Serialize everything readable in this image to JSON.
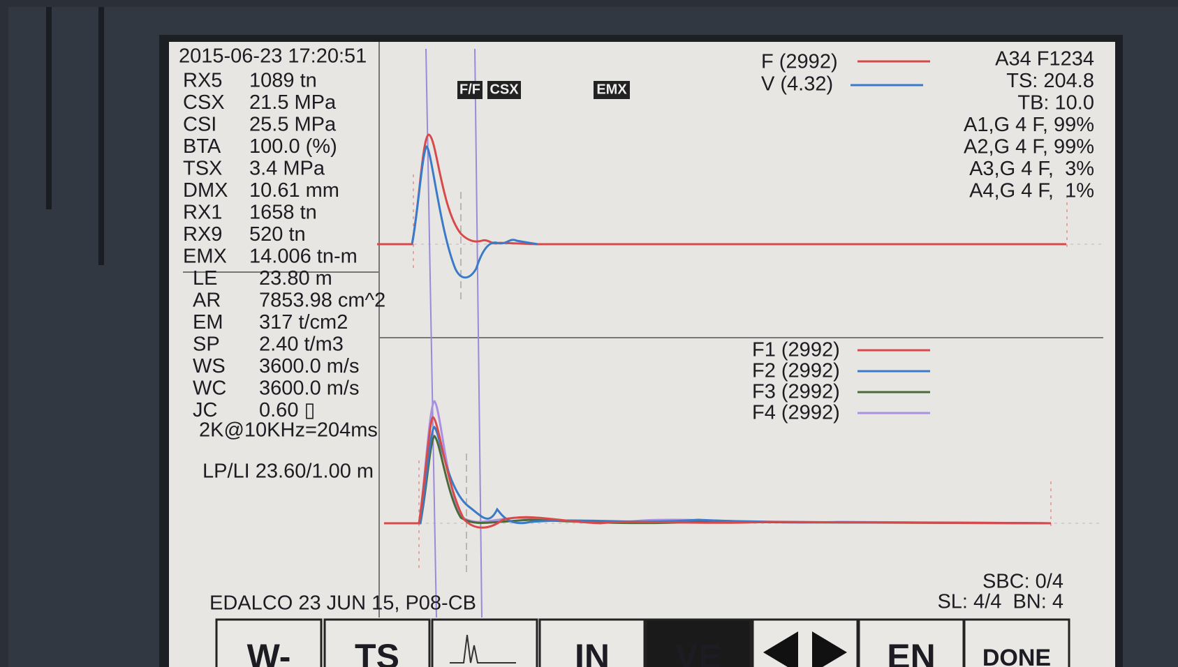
{
  "header": {
    "timestamp": "2015-06-23 17:20:51"
  },
  "readouts": [
    {
      "label": "RX5",
      "value": "1089 tn"
    },
    {
      "label": "CSX",
      "value": "21.5 MPa"
    },
    {
      "label": "CSI",
      "value": "25.5 MPa"
    },
    {
      "label": "BTA",
      "value": "100.0 (%)"
    },
    {
      "label": "TSX",
      "value": "3.4 MPa"
    },
    {
      "label": "DMX",
      "value": "10.61 mm"
    },
    {
      "label": "RX1",
      "value": "1658 tn"
    },
    {
      "label": "RX9",
      "value": "520 tn"
    },
    {
      "label": "EMX",
      "value": "14.006 tn-m"
    },
    {
      "label": "LE",
      "value": "23.80 m"
    },
    {
      "label": "AR",
      "value": "7853.98 cm^2"
    },
    {
      "label": "EM",
      "value": "317 t/cm2"
    },
    {
      "label": "SP",
      "value": "2.40 t/m3"
    },
    {
      "label": "WS",
      "value": "3600.0 m/s"
    },
    {
      "label": "WC",
      "value": "3600.0 m/s"
    },
    {
      "label": "JC",
      "value": "0.60 ▯"
    }
  ],
  "sampling": "2K@10KHz=204ms",
  "lp_li": "LP/LI 23.60/1.00 m",
  "markers": [
    "F/F",
    "CSX",
    "EMX"
  ],
  "top_legend": [
    "F (2992)",
    "V (4.32)"
  ],
  "status": [
    "A34 F1234",
    "TS: 204.8",
    "TB: 10.0",
    "A1,G 4 F, 99%",
    "A2,G 4 F, 99%",
    "A3,G 4 F,  3%",
    "A4,G 4 F,  1%"
  ],
  "bottom_legend": [
    "F1 (2992)",
    "F2 (2992)",
    "F3 (2992)",
    "F4 (2992)"
  ],
  "footer": {
    "left": "EDALCO 23 JUN 15, P08-CB",
    "sbc": "SBC: 0/4",
    "sl_bn": "SL: 4/4  BN: 4"
  },
  "buttons": [
    "W-",
    "TS",
    "IN",
    "VE",
    "EN",
    "DONE"
  ]
}
